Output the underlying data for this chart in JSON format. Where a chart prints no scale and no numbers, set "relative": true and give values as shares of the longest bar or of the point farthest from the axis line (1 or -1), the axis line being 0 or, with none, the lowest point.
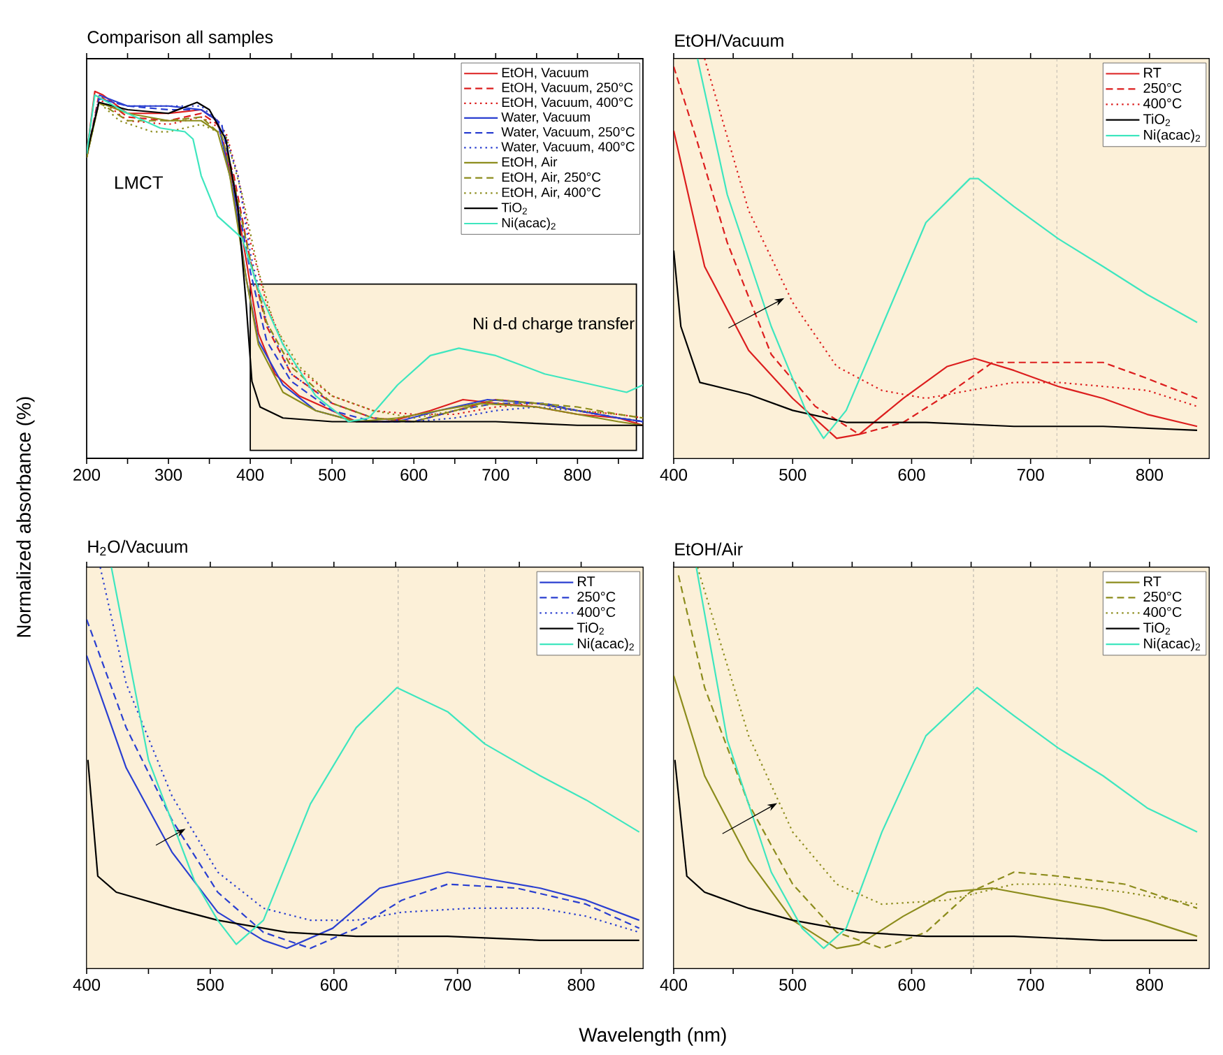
{
  "chart_data": [
    {
      "type": "line",
      "relative": true,
      "title": "Comparison all samples",
      "ylabel": "Normalized absorbance (%)",
      "xlim": [
        200,
        880
      ],
      "xticks": [
        200,
        {
          "value": 250,
          "label": null
        },
        300,
        {
          "value": 350,
          "label": null
        },
        400,
        {
          "value": 450,
          "label": null
        },
        500,
        {
          "value": 550,
          "label": null
        },
        600,
        {
          "value": 650,
          "label": null
        },
        700,
        {
          "value": 750,
          "label": null
        },
        800,
        {
          "value": 850,
          "label": null
        }
      ],
      "tick_labels": "x",
      "legend": "top right",
      "annotations": [
        "LMCT"
      ],
      "bands": [
        {
          "axis": "x",
          "from": 400,
          "to": 872,
          "label": "Ni d-d charge transfer",
          "color": "#fcf0d8"
        }
      ],
      "series": [
        {
          "name": "EtOH, Vacuum",
          "color": "#dc1e1e",
          "line_style": "solid",
          "x": [
            200,
            210,
            220,
            250,
            300,
            340,
            360,
            380,
            395,
            410,
            430,
            460,
            500,
            530,
            570,
            620,
            660,
            700,
            750,
            800,
            850,
            880
          ],
          "values": [
            0.83,
            1.0,
            0.99,
            0.94,
            0.94,
            0.95,
            0.92,
            0.74,
            0.54,
            0.34,
            0.23,
            0.17,
            0.13,
            0.1,
            0.1,
            0.13,
            0.16,
            0.15,
            0.14,
            0.12,
            0.11,
            0.09
          ]
        },
        {
          "name": "EtOH, Vacuum, 250°C",
          "color": "#dc1e1e",
          "line_style": "dashed",
          "x": [
            200,
            215,
            250,
            300,
            340,
            360,
            380,
            400,
            420,
            450,
            500,
            550,
            600,
            650,
            700,
            750,
            800,
            850,
            880
          ],
          "values": [
            0.82,
            0.99,
            0.93,
            0.92,
            0.94,
            0.91,
            0.77,
            0.54,
            0.36,
            0.23,
            0.15,
            0.11,
            0.1,
            0.13,
            0.16,
            0.15,
            0.13,
            0.11,
            0.1
          ]
        },
        {
          "name": "EtOH, Vacuum, 400°C",
          "color": "#dc1e1e",
          "line_style": "dotted",
          "x": [
            200,
            215,
            250,
            300,
            340,
            370,
            385,
            400,
            420,
            450,
            500,
            550,
            600,
            650,
            700,
            750,
            800,
            850,
            880
          ],
          "values": [
            0.82,
            0.98,
            0.92,
            0.91,
            0.93,
            0.89,
            0.77,
            0.59,
            0.42,
            0.26,
            0.17,
            0.13,
            0.12,
            0.12,
            0.14,
            0.15,
            0.13,
            0.12,
            0.11
          ]
        },
        {
          "name": "Water, Vacuum",
          "color": "#2a3fd0",
          "line_style": "solid",
          "x": [
            215,
            250,
            300,
            340,
            360,
            380,
            395,
            410,
            440,
            480,
            530,
            580,
            630,
            690,
            750,
            800,
            850,
            880
          ],
          "values": [
            0.99,
            0.96,
            0.96,
            0.95,
            0.92,
            0.72,
            0.49,
            0.32,
            0.2,
            0.13,
            0.1,
            0.1,
            0.13,
            0.16,
            0.15,
            0.13,
            0.11,
            0.1
          ]
        },
        {
          "name": "Water, Vacuum, 250°C",
          "color": "#2a3fd0",
          "line_style": "dashed",
          "x": [
            200,
            215,
            250,
            300,
            340,
            365,
            380,
            400,
            420,
            450,
            500,
            550,
            600,
            650,
            700,
            760,
            800,
            850,
            880
          ],
          "values": [
            0.82,
            0.98,
            0.96,
            0.95,
            0.95,
            0.91,
            0.75,
            0.51,
            0.32,
            0.21,
            0.13,
            0.1,
            0.1,
            0.13,
            0.15,
            0.15,
            0.13,
            0.11,
            0.1
          ]
        },
        {
          "name": "Water, Vacuum, 400°C",
          "color": "#2a3fd0",
          "line_style": "dotted",
          "x": [
            200,
            215,
            250,
            300,
            340,
            365,
            385,
            400,
            420,
            450,
            500,
            550,
            600,
            650,
            700,
            750,
            800,
            850,
            880
          ],
          "values": [
            0.82,
            0.98,
            0.96,
            0.96,
            0.96,
            0.91,
            0.77,
            0.56,
            0.37,
            0.23,
            0.15,
            0.11,
            0.1,
            0.11,
            0.13,
            0.14,
            0.13,
            0.11,
            0.1
          ]
        },
        {
          "name": "EtOH, Air",
          "color": "#8c8c1c",
          "line_style": "solid",
          "x": [
            200,
            215,
            250,
            300,
            340,
            360,
            375,
            395,
            410,
            440,
            480,
            530,
            580,
            630,
            680,
            750,
            800,
            850,
            880
          ],
          "values": [
            0.82,
            0.97,
            0.94,
            0.92,
            0.92,
            0.89,
            0.77,
            0.49,
            0.31,
            0.18,
            0.13,
            0.1,
            0.11,
            0.13,
            0.15,
            0.14,
            0.12,
            0.1,
            0.09
          ]
        },
        {
          "name": "EtOH, Air, 250°C",
          "color": "#8c8c1c",
          "line_style": "dashed",
          "x": [
            200,
            215,
            250,
            300,
            340,
            365,
            380,
            400,
            420,
            450,
            500,
            550,
            600,
            650,
            700,
            750,
            800,
            850,
            880
          ],
          "values": [
            0.82,
            0.97,
            0.92,
            0.92,
            0.93,
            0.88,
            0.75,
            0.54,
            0.37,
            0.25,
            0.15,
            0.11,
            0.1,
            0.13,
            0.16,
            0.15,
            0.14,
            0.12,
            0.11
          ]
        },
        {
          "name": "EtOH, Air, 400°C",
          "color": "#8c8c1c",
          "line_style": "dotted",
          "x": [
            200,
            215,
            240,
            280,
            300,
            340,
            370,
            390,
            410,
            430,
            460,
            500,
            550,
            600,
            650,
            700,
            750,
            800,
            850,
            880
          ],
          "values": [
            0.82,
            0.97,
            0.92,
            0.89,
            0.89,
            0.91,
            0.88,
            0.72,
            0.51,
            0.36,
            0.25,
            0.17,
            0.13,
            0.11,
            0.13,
            0.15,
            0.15,
            0.13,
            0.12,
            0.11
          ]
        },
        {
          "name": "TiO$_{2}$",
          "color": "#000000",
          "line_style": "solid",
          "x": [
            200,
            215,
            250,
            300,
            335,
            350,
            370,
            385,
            395,
            402,
            412,
            440,
            500,
            600,
            700,
            800,
            880
          ],
          "values": [
            0.83,
            0.97,
            0.95,
            0.94,
            0.97,
            0.95,
            0.87,
            0.68,
            0.42,
            0.21,
            0.14,
            0.11,
            0.1,
            0.1,
            0.1,
            0.09,
            0.09
          ]
        },
        {
          "name": "Ni(acac)$_{2}$",
          "color": "#3ee6bf",
          "line_style": "solid",
          "x": [
            200,
            210,
            250,
            290,
            320,
            330,
            340,
            360,
            390,
            410,
            440,
            480,
            520,
            545,
            580,
            620,
            655,
            700,
            760,
            820,
            860,
            880
          ],
          "values": [
            0.83,
            0.99,
            0.94,
            0.9,
            0.89,
            0.87,
            0.77,
            0.66,
            0.6,
            0.46,
            0.31,
            0.17,
            0.1,
            0.11,
            0.2,
            0.28,
            0.3,
            0.28,
            0.23,
            0.2,
            0.18,
            0.2
          ]
        }
      ]
    },
    {
      "type": "line",
      "relative": true,
      "title": "EtOH/Vacuum",
      "xlim": [
        400,
        850
      ],
      "xticks": [
        400,
        {
          "value": 450,
          "label": null
        },
        500,
        {
          "value": 550,
          "label": null
        },
        600,
        {
          "value": 650,
          "label": null
        },
        700,
        {
          "value": 750,
          "label": null
        },
        800
      ],
      "tick_labels": "x",
      "legend": "top right",
      "bands": [
        {
          "axis": "x",
          "from": 400,
          "to": 850,
          "color": "#fcf0d8"
        }
      ],
      "ref_lines": [
        {
          "axis": "x",
          "value": 652,
          "color": "#999999",
          "line_style": "dashed"
        },
        {
          "axis": "x",
          "value": 722,
          "color": "#999999",
          "line_style": "dashed"
        }
      ],
      "series": [
        {
          "name": "RT",
          "color": "#dc1e1e",
          "line_style": "solid",
          "x": [
            400,
            426,
            463,
            500,
            537,
            556,
            593,
            630,
            653,
            686,
            723,
            761,
            798,
            840
          ],
          "values": [
            0.82,
            0.48,
            0.27,
            0.15,
            0.05,
            0.06,
            0.15,
            0.23,
            0.25,
            0.22,
            0.18,
            0.15,
            0.11,
            0.08
          ]
        },
        {
          "name": "250°C",
          "color": "#dc1e1e",
          "line_style": "dashed",
          "x": [
            400,
            419,
            445,
            482,
            519,
            556,
            593,
            630,
            668,
            705,
            761,
            798,
            840
          ],
          "values": [
            0.98,
            0.8,
            0.54,
            0.26,
            0.13,
            0.06,
            0.09,
            0.16,
            0.24,
            0.24,
            0.24,
            0.2,
            0.15
          ]
        },
        {
          "name": "400°C",
          "color": "#dc1e1e",
          "line_style": "dotted",
          "x": [
            426,
            463,
            500,
            537,
            575,
            612,
            649,
            686,
            723,
            761,
            798,
            840
          ],
          "values": [
            1.0,
            0.62,
            0.39,
            0.23,
            0.17,
            0.15,
            0.17,
            0.19,
            0.19,
            0.18,
            0.17,
            0.13
          ]
        },
        {
          "name": "TiO$_{2}$",
          "color": "#000000",
          "line_style": "solid",
          "x": [
            400,
            406,
            422,
            463,
            500,
            545,
            612,
            686,
            761,
            840
          ],
          "values": [
            0.52,
            0.33,
            0.19,
            0.16,
            0.12,
            0.09,
            0.09,
            0.08,
            0.08,
            0.07
          ]
        },
        {
          "name": "Ni(acac)$_{2}$",
          "color": "#3ee6bf",
          "line_style": "solid",
          "x": [
            420,
            445,
            482,
            511,
            526,
            545,
            575,
            612,
            649,
            656,
            686,
            723,
            761,
            798,
            840
          ],
          "values": [
            1.0,
            0.66,
            0.33,
            0.12,
            0.05,
            0.12,
            0.33,
            0.59,
            0.7,
            0.7,
            0.63,
            0.55,
            0.48,
            0.41,
            0.34
          ]
        }
      ]
    },
    {
      "type": "line",
      "relative": true,
      "title": "H$_{2}$O/Vacuum",
      "xlabel": "Wavelength (nm)",
      "xlim": [
        400,
        850
      ],
      "xticks": [
        400,
        {
          "value": 450,
          "label": null
        },
        500,
        {
          "value": 550,
          "label": null
        },
        600,
        {
          "value": 650,
          "label": null
        },
        700,
        {
          "value": 750,
          "label": null
        },
        800
      ],
      "tick_labels": "x",
      "legend": "top right",
      "bands": [
        {
          "axis": "x",
          "from": 400,
          "to": 850,
          "color": "#fcf0d8"
        }
      ],
      "ref_lines": [
        {
          "axis": "x",
          "value": 652,
          "color": "#999999",
          "line_style": "dashed"
        },
        {
          "axis": "x",
          "value": 722,
          "color": "#999999",
          "line_style": "dashed"
        }
      ],
      "series": [
        {
          "name": "RT",
          "color": "#2a3fd0",
          "line_style": "solid",
          "x": [
            400,
            432,
            469,
            506,
            543,
            562,
            599,
            637,
            692,
            730,
            767,
            804,
            847
          ],
          "values": [
            0.78,
            0.5,
            0.29,
            0.14,
            0.07,
            0.05,
            0.1,
            0.2,
            0.24,
            0.22,
            0.2,
            0.17,
            0.12
          ]
        },
        {
          "name": "250°C",
          "color": "#2a3fd0",
          "line_style": "dashed",
          "x": [
            400,
            432,
            469,
            506,
            543,
            581,
            618,
            655,
            692,
            748,
            804,
            847
          ],
          "values": [
            0.87,
            0.6,
            0.37,
            0.19,
            0.09,
            0.05,
            0.1,
            0.17,
            0.21,
            0.2,
            0.16,
            0.1
          ]
        },
        {
          "name": "400°C",
          "color": "#2a3fd0",
          "line_style": "dotted",
          "x": [
            411,
            432,
            469,
            506,
            543,
            581,
            618,
            655,
            711,
            767,
            804,
            847
          ],
          "values": [
            1.0,
            0.71,
            0.43,
            0.24,
            0.15,
            0.12,
            0.12,
            0.14,
            0.15,
            0.15,
            0.13,
            0.09
          ]
        },
        {
          "name": "TiO$_{2}$",
          "color": "#000000",
          "line_style": "solid",
          "x": [
            401,
            409,
            424,
            469,
            506,
            562,
            618,
            692,
            767,
            847
          ],
          "values": [
            0.52,
            0.23,
            0.19,
            0.15,
            0.12,
            0.09,
            0.08,
            0.08,
            0.07,
            0.07
          ]
        },
        {
          "name": "Ni(acac)$_{2}$",
          "color": "#3ee6bf",
          "line_style": "solid",
          "x": [
            420,
            450,
            487,
            506,
            521,
            543,
            581,
            618,
            651,
            692,
            722,
            767,
            804,
            847
          ],
          "values": [
            1.0,
            0.52,
            0.22,
            0.12,
            0.06,
            0.12,
            0.41,
            0.6,
            0.7,
            0.64,
            0.56,
            0.48,
            0.42,
            0.34
          ]
        }
      ]
    },
    {
      "type": "line",
      "relative": true,
      "title": "EtOH/Air",
      "xlim": [
        400,
        850
      ],
      "xticks": [
        400,
        {
          "value": 450,
          "label": null
        },
        500,
        {
          "value": 550,
          "label": null
        },
        600,
        {
          "value": 650,
          "label": null
        },
        700,
        {
          "value": 750,
          "label": null
        },
        800
      ],
      "tick_labels": "x",
      "legend": "top right",
      "bands": [
        {
          "axis": "x",
          "from": 400,
          "to": 850,
          "color": "#fcf0d8"
        }
      ],
      "ref_lines": [
        {
          "axis": "x",
          "value": 652,
          "color": "#999999",
          "line_style": "dashed"
        },
        {
          "axis": "x",
          "value": 722,
          "color": "#999999",
          "line_style": "dashed"
        }
      ],
      "series": [
        {
          "name": "RT",
          "color": "#8c8c1c",
          "line_style": "solid",
          "x": [
            400,
            426,
            463,
            500,
            537,
            556,
            593,
            630,
            668,
            723,
            761,
            798,
            840
          ],
          "values": [
            0.73,
            0.48,
            0.27,
            0.12,
            0.05,
            0.06,
            0.13,
            0.19,
            0.2,
            0.17,
            0.15,
            0.12,
            0.08
          ]
        },
        {
          "name": "250°C",
          "color": "#8c8c1c",
          "line_style": "dashed",
          "x": [
            404,
            426,
            463,
            500,
            537,
            575,
            612,
            649,
            686,
            723,
            779,
            840
          ],
          "values": [
            0.98,
            0.7,
            0.41,
            0.21,
            0.09,
            0.05,
            0.09,
            0.19,
            0.24,
            0.23,
            0.21,
            0.15
          ]
        },
        {
          "name": "400°C",
          "color": "#8c8c1c",
          "line_style": "dotted",
          "x": [
            420,
            463,
            500,
            537,
            575,
            630,
            686,
            723,
            779,
            840
          ],
          "values": [
            1.0,
            0.58,
            0.34,
            0.21,
            0.16,
            0.17,
            0.21,
            0.21,
            0.19,
            0.16
          ]
        },
        {
          "name": "TiO$_{2}$",
          "color": "#000000",
          "line_style": "solid",
          "x": [
            401,
            411,
            426,
            463,
            500,
            556,
            612,
            686,
            761,
            840
          ],
          "values": [
            0.52,
            0.23,
            0.19,
            0.15,
            0.12,
            0.09,
            0.08,
            0.08,
            0.07,
            0.07
          ]
        },
        {
          "name": "Ni(acac)$_{2}$",
          "color": "#3ee6bf",
          "line_style": "solid",
          "x": [
            419,
            445,
            482,
            508,
            526,
            545,
            575,
            612,
            655,
            686,
            723,
            761,
            798,
            840
          ],
          "values": [
            1.0,
            0.57,
            0.24,
            0.1,
            0.05,
            0.1,
            0.34,
            0.58,
            0.7,
            0.63,
            0.55,
            0.48,
            0.4,
            0.34
          ]
        }
      ]
    }
  ]
}
